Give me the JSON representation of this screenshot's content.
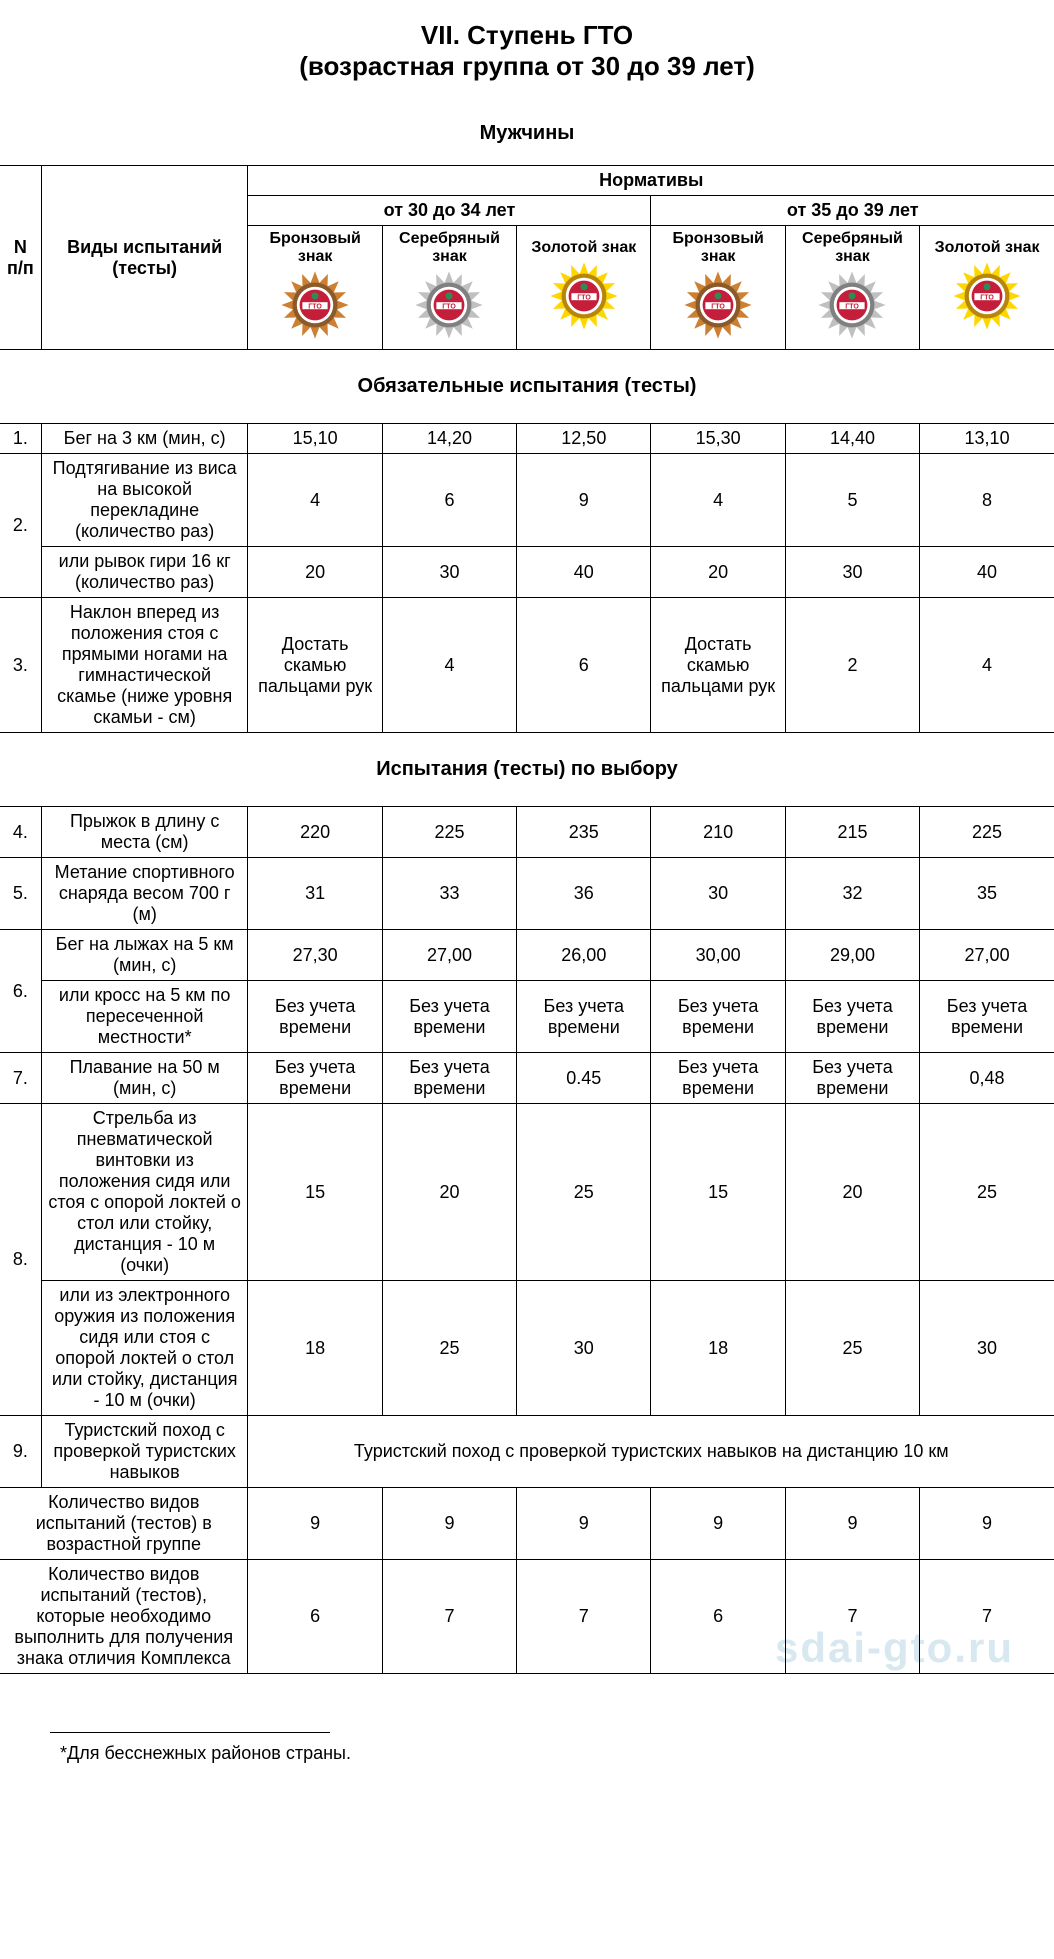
{
  "title": {
    "line1": "VII. Ступень ГТО",
    "line2": "(возрастная группа от 30 до 39 лет)"
  },
  "gender": "Мужчины",
  "headers": {
    "num": "N п/п",
    "tests": "Виды испытаний (тесты)",
    "standards": "Нормативы",
    "age_group_1": "от 30 до 34 лет",
    "age_group_2": "от 35 до 39 лет",
    "bronze": "Бронзовый знак",
    "silver": "Серебряный знак",
    "gold": "Золотой знак"
  },
  "badge_colors": {
    "bronze_outer": "#8b5a2b",
    "bronze_ribbon": "#cd7f32",
    "silver_outer": "#808080",
    "silver_ribbon": "#c0c0c0",
    "gold_outer": "#b8860b",
    "gold_ribbon": "#ffd700",
    "center_green": "#2e8b57",
    "center_red": "#c41e3a",
    "flag_white": "#ffffff"
  },
  "sections": {
    "mandatory": "Обязательные испытания (тесты)",
    "optional": "Испытания (тесты) по выбору"
  },
  "rows": [
    {
      "num": "1.",
      "name": "Бег на 3 км (мин, с)",
      "v": [
        "15,10",
        "14,20",
        "12,50",
        "15,30",
        "14,40",
        "13,10"
      ]
    },
    {
      "num": "2.",
      "rowspan": 2,
      "name": "Подтягивание из виса на высокой перекладине (количество раз)",
      "v": [
        "4",
        "6",
        "9",
        "4",
        "5",
        "8"
      ]
    },
    {
      "sub": true,
      "name": "или рывок гири 16 кг (количество раз)",
      "v": [
        "20",
        "30",
        "40",
        "20",
        "30",
        "40"
      ]
    },
    {
      "num": "3.",
      "name": "Наклон вперед из положения стоя с прямыми ногами на гимнастической скамье (ниже уровня скамьи - см)",
      "v": [
        "Достать скамью пальцами рук",
        "4",
        "6",
        "Достать скамью пальцами рук",
        "2",
        "4"
      ]
    }
  ],
  "rows_optional": [
    {
      "num": "4.",
      "name": "Прыжок в длину с места (см)",
      "v": [
        "220",
        "225",
        "235",
        "210",
        "215",
        "225"
      ]
    },
    {
      "num": "5.",
      "name": "Метание спортивного снаряда весом 700 г (м)",
      "v": [
        "31",
        "33",
        "36",
        "30",
        "32",
        "35"
      ]
    },
    {
      "num": "6.",
      "rowspan": 2,
      "name": "Бег на лыжах на 5 км (мин, с)",
      "v": [
        "27,30",
        "27,00",
        "26,00",
        "30,00",
        "29,00",
        "27,00"
      ]
    },
    {
      "sub": true,
      "name": "или кросс на 5 км по пересеченной местности*",
      "v": [
        "Без учета времени",
        "Без учета времени",
        "Без учета времени",
        "Без учета времени",
        "Без учета времени",
        "Без учета времени"
      ]
    },
    {
      "num": "7.",
      "name": "Плавание на 50 м (мин, с)",
      "v": [
        "Без учета времени",
        "Без учета времени",
        "0.45",
        "Без учета времени",
        "Без учета времени",
        "0,48"
      ]
    },
    {
      "num": "8.",
      "rowspan": 2,
      "name": "Стрельба из пневматической винтовки из положения сидя или стоя с опорой локтей о стол или стойку, дистанция - 10 м (очки)",
      "v": [
        "15",
        "20",
        "25",
        "15",
        "20",
        "25"
      ]
    },
    {
      "sub": true,
      "name": "или из электронного оружия из положения сидя или стоя с опорой локтей о стол или стойку, дистанция - 10 м (очки)",
      "v": [
        "18",
        "25",
        "30",
        "18",
        "25",
        "30"
      ]
    },
    {
      "num": "9.",
      "name": "Туристский поход с проверкой туристских навыков",
      "merged": "Туристский поход с проверкой туристских навыков на дистанцию 10 км"
    }
  ],
  "summary": [
    {
      "name": "Количество видов испытаний (тестов) в возрастной группе",
      "v": [
        "9",
        "9",
        "9",
        "9",
        "9",
        "9"
      ]
    },
    {
      "name": "Количество видов испытаний (тестов), которые необходимо выполнить для получения знака отличия Комплекса",
      "v": [
        "6",
        "7",
        "7",
        "6",
        "7",
        "7"
      ]
    }
  ],
  "footnote": "*Для бесснежных районов страны.",
  "watermark": "sdai-gto.ru"
}
